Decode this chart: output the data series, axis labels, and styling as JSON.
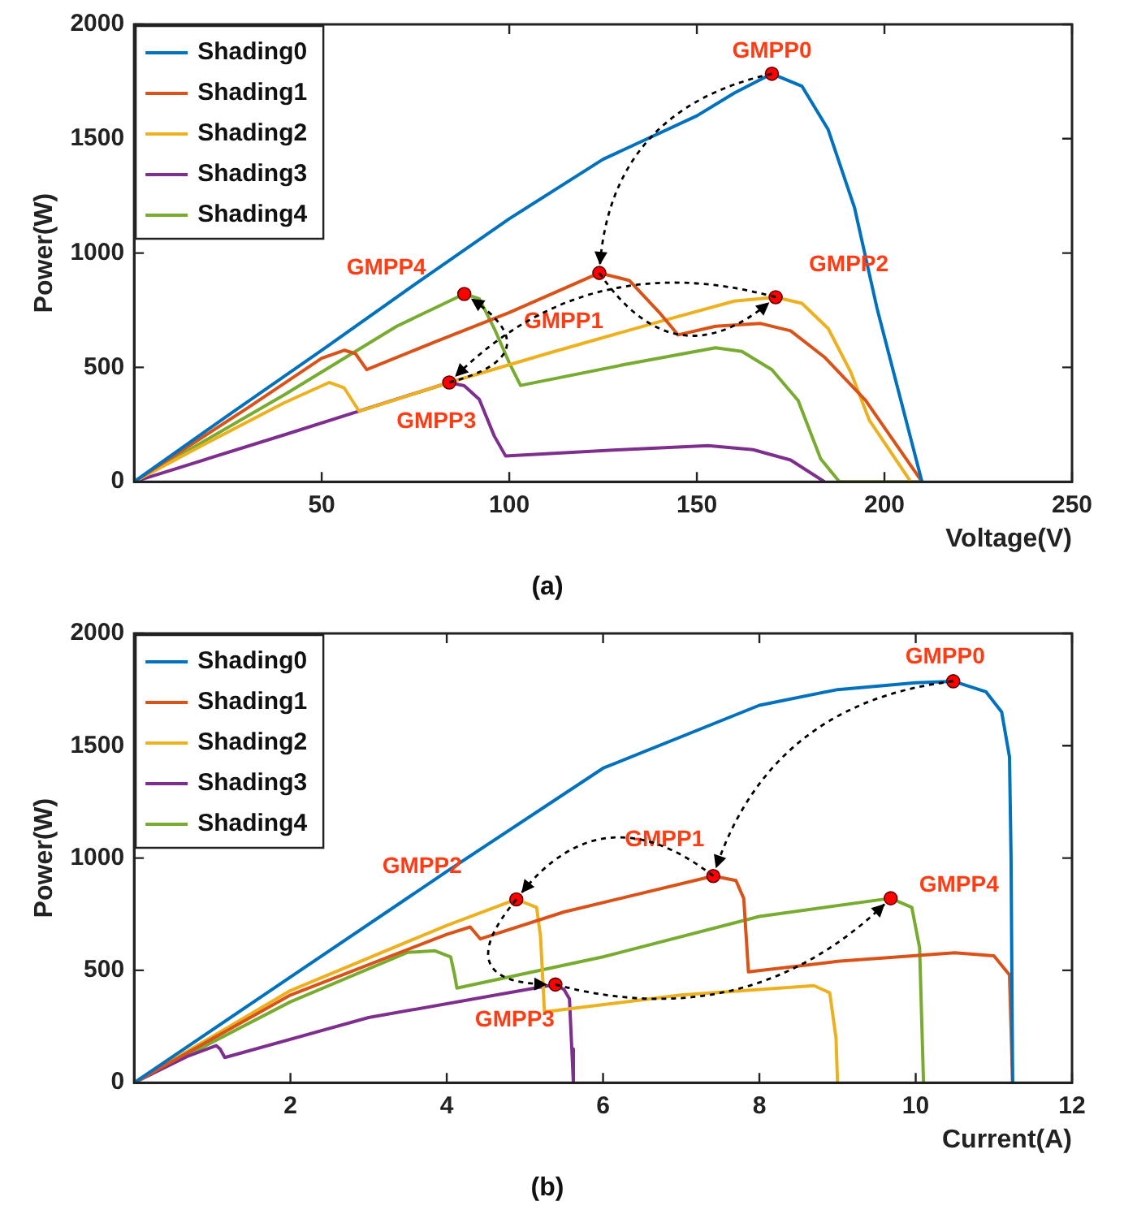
{
  "chart_data": [
    {
      "type": "line",
      "title": "(a)",
      "xlabel": "Voltage(V)",
      "ylabel": "Power(W)",
      "xlim": [
        0,
        250
      ],
      "xticks": [
        50,
        100,
        150,
        200,
        250
      ],
      "ylim": [
        0,
        2000
      ],
      "yticks": [
        0,
        500,
        1000,
        1500,
        2000
      ],
      "grid": false,
      "legend": "top left",
      "marker": "none",
      "line_style": "solid",
      "series": [
        {
          "name": "Shading0",
          "color": "#0072bd",
          "x": [
            0,
            25,
            50,
            75,
            100,
            125,
            150,
            160,
            170,
            178,
            185,
            192,
            198,
            204,
            210
          ],
          "values": [
            0,
            290,
            575,
            865,
            1150,
            1410,
            1600,
            1700,
            1784,
            1730,
            1540,
            1200,
            760,
            380,
            0
          ]
        },
        {
          "name": "Shading1",
          "color": "#d95319",
          "x": [
            0,
            30,
            50,
            56,
            59,
            62,
            80,
            100,
            124,
            132,
            140,
            145,
            155,
            167,
            175,
            184,
            195,
            210
          ],
          "values": [
            0,
            320,
            540,
            575,
            560,
            490,
            610,
            740,
            913,
            880,
            740,
            642,
            680,
            692,
            660,
            545,
            355,
            0
          ]
        },
        {
          "name": "Shading2",
          "color": "#edb120",
          "x": [
            0,
            20,
            40,
            52,
            56,
            60,
            84,
            110,
            140,
            160,
            171,
            178,
            185,
            191,
            196,
            207
          ],
          "values": [
            0,
            175,
            345,
            434,
            410,
            308,
            434,
            560,
            700,
            790,
            807,
            780,
            670,
            480,
            268,
            0
          ]
        },
        {
          "name": "Shading3",
          "color": "#7e2f8e",
          "x": [
            0,
            40,
            84,
            88,
            92,
            96,
            99,
            130,
            153,
            165,
            175,
            184
          ],
          "values": [
            0,
            205,
            434,
            420,
            360,
            200,
            113,
            140,
            158,
            140,
            95,
            0
          ]
        },
        {
          "name": "Shading4",
          "color": "#77ac30",
          "x": [
            0,
            40,
            70,
            88,
            92,
            96,
            100,
            103,
            130,
            155,
            162,
            170,
            177,
            183,
            188,
            210
          ],
          "values": [
            0,
            380,
            680,
            821,
            800,
            670,
            520,
            421,
            510,
            586,
            570,
            490,
            355,
            100,
            0,
            0
          ]
        }
      ],
      "annotations": [
        {
          "text": "GMPP0",
          "x": 170,
          "y": 1784
        },
        {
          "text": "GMPP1",
          "x": 124,
          "y": 913
        },
        {
          "text": "GMPP2",
          "x": 171,
          "y": 807
        },
        {
          "text": "GMPP3",
          "x": 84,
          "y": 434
        },
        {
          "text": "GMPP4",
          "x": 88,
          "y": 821
        }
      ]
    },
    {
      "type": "line",
      "title": "(b)",
      "xlabel": "Current(A)",
      "ylabel": "Power(W)",
      "xlim": [
        0,
        12
      ],
      "xticks": [
        2,
        4,
        6,
        8,
        10,
        12
      ],
      "ylim": [
        0,
        2000
      ],
      "yticks": [
        0,
        500,
        1000,
        1500,
        2000
      ],
      "grid": false,
      "legend": "top left",
      "marker": "none",
      "line_style": "solid",
      "series": [
        {
          "name": "Shading0",
          "color": "#0072bd",
          "x": [
            0,
            2,
            4,
            6,
            8,
            9,
            10,
            10.48,
            10.9,
            11.1,
            11.2,
            11.22,
            11.24
          ],
          "values": [
            0,
            470,
            940,
            1400,
            1680,
            1750,
            1780,
            1787,
            1740,
            1650,
            1450,
            1000,
            0
          ]
        },
        {
          "name": "Shading1",
          "color": "#d95319",
          "x": [
            0,
            2,
            4,
            4.3,
            4.43,
            5.5,
            7.41,
            7.7,
            7.8,
            7.86,
            9,
            10.5,
            11,
            11.2,
            11.24
          ],
          "values": [
            0,
            390,
            660,
            693,
            640,
            760,
            920,
            900,
            820,
            493,
            540,
            578,
            565,
            480,
            0
          ]
        },
        {
          "name": "Shading2",
          "color": "#edb120",
          "x": [
            0,
            2,
            4,
            4.89,
            5.15,
            5.2,
            5.25,
            7,
            8.7,
            8.9,
            8.98,
            9
          ],
          "values": [
            0,
            410,
            700,
            816,
            780,
            650,
            315,
            390,
            432,
            400,
            200,
            0
          ]
        },
        {
          "name": "Shading3",
          "color": "#7e2f8e",
          "x": [
            0,
            0.7,
            1.05,
            1.1,
            1.16,
            3,
            5.39,
            5.5,
            5.57,
            5.6,
            5.62
          ],
          "values": [
            0,
            120,
            165,
            150,
            112,
            290,
            437,
            415,
            373,
            150,
            0
          ]
        },
        {
          "name": "Shading4",
          "color": "#77ac30",
          "x": [
            0,
            2,
            3.5,
            3.85,
            4.05,
            4.1,
            4.13,
            6,
            8,
            9.68,
            9.95,
            10.05,
            10.1
          ],
          "values": [
            0,
            360,
            580,
            587,
            560,
            480,
            421,
            560,
            740,
            821,
            780,
            600,
            0
          ]
        }
      ],
      "annotations": [
        {
          "text": "GMPP0",
          "x": 10.48,
          "y": 1787
        },
        {
          "text": "GMPP1",
          "x": 7.41,
          "y": 920
        },
        {
          "text": "GMPP2",
          "x": 4.89,
          "y": 816
        },
        {
          "text": "GMPP3",
          "x": 5.39,
          "y": 437
        },
        {
          "text": "GMPP4",
          "x": 9.68,
          "y": 821
        }
      ]
    }
  ]
}
